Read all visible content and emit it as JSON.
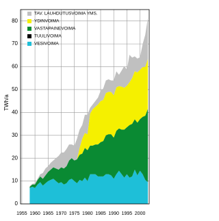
{
  "chart_data": {
    "type": "stacked-area",
    "y_label": "TWh/a",
    "x": [
      1958,
      1959,
      1960,
      1961,
      1962,
      1963,
      1964,
      1965,
      1966,
      1967,
      1968,
      1969,
      1970,
      1971,
      1972,
      1973,
      1974,
      1975,
      1976,
      1977,
      1978,
      1979,
      1980,
      1981,
      1982,
      1983,
      1984,
      1985,
      1986,
      1987,
      1988,
      1989,
      1990,
      1991,
      1992,
      1993,
      1994,
      1995,
      1996,
      1997,
      1998,
      1999,
      2000,
      2001,
      2002,
      2003
    ],
    "series": [
      {
        "name": "VESIVOIMA",
        "color": "#1ebfd8",
        "values": [
          7,
          7.5,
          7,
          8.5,
          9.5,
          8,
          9,
          10,
          10.5,
          11,
          10,
          9,
          9.5,
          8.5,
          9,
          10.5,
          11,
          10,
          9,
          10.5,
          10,
          11.5,
          10,
          13,
          13,
          13,
          12,
          12,
          12,
          13,
          13,
          12.5,
          11,
          13,
          14.5,
          13,
          11.5,
          13,
          11.5,
          12,
          15,
          12.5,
          14.5,
          13,
          10.5,
          9.5
        ]
      },
      {
        "name": "TUULIVOIMA",
        "color": "#000000",
        "values": [
          0,
          0,
          0,
          0,
          0,
          0,
          0,
          0,
          0,
          0,
          0,
          0,
          0,
          0,
          0,
          0,
          0,
          0,
          0,
          0,
          0,
          0,
          0,
          0,
          0,
          0,
          0,
          0,
          0,
          0,
          0,
          0,
          0,
          0,
          0.01,
          0.01,
          0.01,
          0.01,
          0.01,
          0.02,
          0.02,
          0.05,
          0.08,
          0.07,
          0.06,
          0.09
        ]
      },
      {
        "name": "VASTAPAINEVOIMA",
        "color": "#0a8a33",
        "values": [
          0.5,
          1,
          1.5,
          2,
          2.5,
          3,
          3.5,
          4,
          4.5,
          5,
          5.5,
          6,
          6.5,
          7,
          7.5,
          8.5,
          9,
          9,
          10.5,
          11,
          12,
          13,
          13.5,
          12.5,
          12.5,
          13,
          14,
          15,
          15.5,
          17,
          17.5,
          18,
          18,
          19,
          18.5,
          19.5,
          21,
          20.5,
          23,
          23,
          22,
          23,
          22.5,
          25,
          28,
          32
        ]
      },
      {
        "name": "YDINVOIMA",
        "color": "#f5f000",
        "values": [
          0,
          0,
          0,
          0,
          0,
          0,
          0,
          0,
          0,
          0,
          0,
          0,
          0,
          0,
          0,
          0,
          0,
          0,
          0,
          3,
          6.5,
          6.5,
          7,
          14,
          16,
          16.5,
          17.5,
          18,
          18,
          18.5,
          18.5,
          18.5,
          18.5,
          19,
          18.5,
          18.8,
          18.3,
          18.2,
          18.7,
          20,
          21,
          22,
          21.6,
          21.8,
          21.4,
          21.8
        ]
      },
      {
        "name": "TAV. LAUHDUTUSVOIMA YMS.",
        "color": "#c0c0c0",
        "values": [
          0.3,
          0.3,
          0.5,
          0.5,
          1,
          2.5,
          3,
          2.5,
          3,
          3,
          4.5,
          6,
          6.5,
          7,
          7.5,
          7,
          6,
          6.5,
          9,
          8,
          6,
          8,
          8.5,
          2.5,
          2,
          2.5,
          3,
          4.5,
          5,
          5.5,
          5.5,
          5,
          6.5,
          7,
          5,
          7,
          9.5,
          7,
          12,
          9,
          6.5,
          6,
          5.5,
          10,
          14,
          18
        ]
      }
    ],
    "xlim": [
      1954.5,
      2003.5
    ],
    "xticks": [
      1955,
      1960,
      1965,
      1970,
      1975,
      1980,
      1985,
      1990,
      1995,
      2000
    ],
    "ylim": [
      0,
      85
    ],
    "yticks": [
      0,
      10,
      20,
      30,
      40,
      50,
      60,
      70,
      80
    ],
    "grid": true
  }
}
